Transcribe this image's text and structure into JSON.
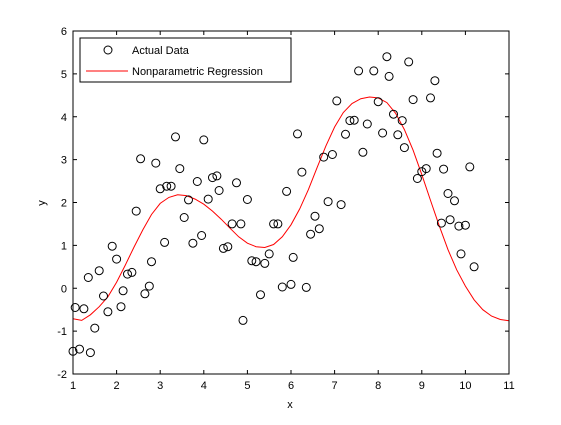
{
  "chart_data": {
    "type": "scatter",
    "title": "",
    "xlabel": "x",
    "ylabel": "y",
    "xlim": [
      1,
      11
    ],
    "ylim": [
      -2,
      6
    ],
    "xticks": [
      1,
      2,
      3,
      4,
      5,
      6,
      7,
      8,
      9,
      10,
      11
    ],
    "yticks": [
      -2,
      -1,
      0,
      1,
      2,
      3,
      4,
      5,
      6
    ],
    "grid": false,
    "legend_location": "top-left",
    "series": [
      {
        "name": "Actual Data",
        "type": "scatter",
        "marker": "circle-open",
        "color": "#000000",
        "points": [
          [
            1.0,
            -1.47
          ],
          [
            1.05,
            -0.45
          ],
          [
            1.15,
            -1.42
          ],
          [
            1.25,
            -0.48
          ],
          [
            1.35,
            0.25
          ],
          [
            1.4,
            -1.5
          ],
          [
            1.5,
            -0.93
          ],
          [
            1.6,
            0.41
          ],
          [
            1.7,
            -0.18
          ],
          [
            1.8,
            -0.55
          ],
          [
            1.9,
            0.98
          ],
          [
            2.0,
            0.68
          ],
          [
            2.1,
            -0.43
          ],
          [
            2.15,
            -0.06
          ],
          [
            2.25,
            0.33
          ],
          [
            2.35,
            0.37
          ],
          [
            2.45,
            1.8
          ],
          [
            2.55,
            3.02
          ],
          [
            2.65,
            -0.13
          ],
          [
            2.75,
            0.05
          ],
          [
            2.8,
            0.62
          ],
          [
            2.9,
            2.92
          ],
          [
            3.0,
            2.32
          ],
          [
            3.1,
            1.07
          ],
          [
            3.15,
            2.38
          ],
          [
            3.25,
            2.38
          ],
          [
            3.35,
            3.53
          ],
          [
            3.45,
            2.79
          ],
          [
            3.55,
            1.65
          ],
          [
            3.65,
            2.06
          ],
          [
            3.75,
            1.05
          ],
          [
            3.85,
            2.49
          ],
          [
            3.95,
            1.23
          ],
          [
            4.0,
            3.46
          ],
          [
            4.1,
            2.08
          ],
          [
            4.2,
            2.58
          ],
          [
            4.3,
            2.62
          ],
          [
            4.35,
            2.28
          ],
          [
            4.45,
            0.93
          ],
          [
            4.55,
            0.97
          ],
          [
            4.65,
            1.5
          ],
          [
            4.75,
            2.46
          ],
          [
            4.85,
            1.5
          ],
          [
            4.9,
            -0.75
          ],
          [
            5.0,
            2.07
          ],
          [
            5.1,
            0.64
          ],
          [
            5.2,
            0.62
          ],
          [
            5.3,
            -0.15
          ],
          [
            5.4,
            0.58
          ],
          [
            5.5,
            0.8
          ],
          [
            5.6,
            1.5
          ],
          [
            5.7,
            1.5
          ],
          [
            5.8,
            0.03
          ],
          [
            5.9,
            2.26
          ],
          [
            6.0,
            0.09
          ],
          [
            6.05,
            0.72
          ],
          [
            6.15,
            3.6
          ],
          [
            6.25,
            2.71
          ],
          [
            6.35,
            0.02
          ],
          [
            6.45,
            1.26
          ],
          [
            6.55,
            1.68
          ],
          [
            6.65,
            1.39
          ],
          [
            6.75,
            3.06
          ],
          [
            6.85,
            2.02
          ],
          [
            6.95,
            3.12
          ],
          [
            7.05,
            4.37
          ],
          [
            7.15,
            1.95
          ],
          [
            7.25,
            3.59
          ],
          [
            7.35,
            3.91
          ],
          [
            7.45,
            3.92
          ],
          [
            7.55,
            5.07
          ],
          [
            7.65,
            3.17
          ],
          [
            7.75,
            3.83
          ],
          [
            7.9,
            5.07
          ],
          [
            8.0,
            4.35
          ],
          [
            8.1,
            3.62
          ],
          [
            8.2,
            5.4
          ],
          [
            8.25,
            4.94
          ],
          [
            8.35,
            4.06
          ],
          [
            8.45,
            3.58
          ],
          [
            8.55,
            3.91
          ],
          [
            8.6,
            3.28
          ],
          [
            8.7,
            5.28
          ],
          [
            8.8,
            4.4
          ],
          [
            8.9,
            2.56
          ],
          [
            9.0,
            2.72
          ],
          [
            9.1,
            2.79
          ],
          [
            9.2,
            4.44
          ],
          [
            9.3,
            4.84
          ],
          [
            9.35,
            3.15
          ],
          [
            9.45,
            1.52
          ],
          [
            9.5,
            2.78
          ],
          [
            9.6,
            2.21
          ],
          [
            9.65,
            1.6
          ],
          [
            9.75,
            2.04
          ],
          [
            9.85,
            1.45
          ],
          [
            9.9,
            0.8
          ],
          [
            10.0,
            1.47
          ],
          [
            10.1,
            2.83
          ],
          [
            10.2,
            0.5
          ]
        ]
      },
      {
        "name": "Nonparametric Regression",
        "type": "line",
        "color": "#ff0000",
        "x": [
          1.0,
          1.2,
          1.4,
          1.6,
          1.8,
          2.0,
          2.2,
          2.4,
          2.6,
          2.8,
          3.0,
          3.2,
          3.4,
          3.6,
          3.8,
          4.0,
          4.2,
          4.4,
          4.6,
          4.8,
          5.0,
          5.2,
          5.4,
          5.6,
          5.8,
          6.0,
          6.2,
          6.4,
          6.6,
          6.8,
          7.0,
          7.2,
          7.4,
          7.6,
          7.8,
          8.0,
          8.2,
          8.4,
          8.6,
          8.8,
          9.0,
          9.2,
          9.4,
          9.6,
          9.8,
          10.0,
          10.2,
          10.4,
          10.6,
          10.8,
          11.0
        ],
        "y": [
          -0.71,
          -0.75,
          -0.62,
          -0.43,
          -0.2,
          0.14,
          0.54,
          0.96,
          1.36,
          1.72,
          1.98,
          2.12,
          2.18,
          2.16,
          2.08,
          1.96,
          1.8,
          1.61,
          1.4,
          1.2,
          1.05,
          0.97,
          0.95,
          1.02,
          1.2,
          1.48,
          1.85,
          2.3,
          2.82,
          3.32,
          3.76,
          4.1,
          4.31,
          4.42,
          4.46,
          4.44,
          4.33,
          4.08,
          3.7,
          3.22,
          2.65,
          2.05,
          1.46,
          0.9,
          0.43,
          0.05,
          -0.27,
          -0.5,
          -0.65,
          -0.73,
          -0.76
        ]
      }
    ]
  }
}
